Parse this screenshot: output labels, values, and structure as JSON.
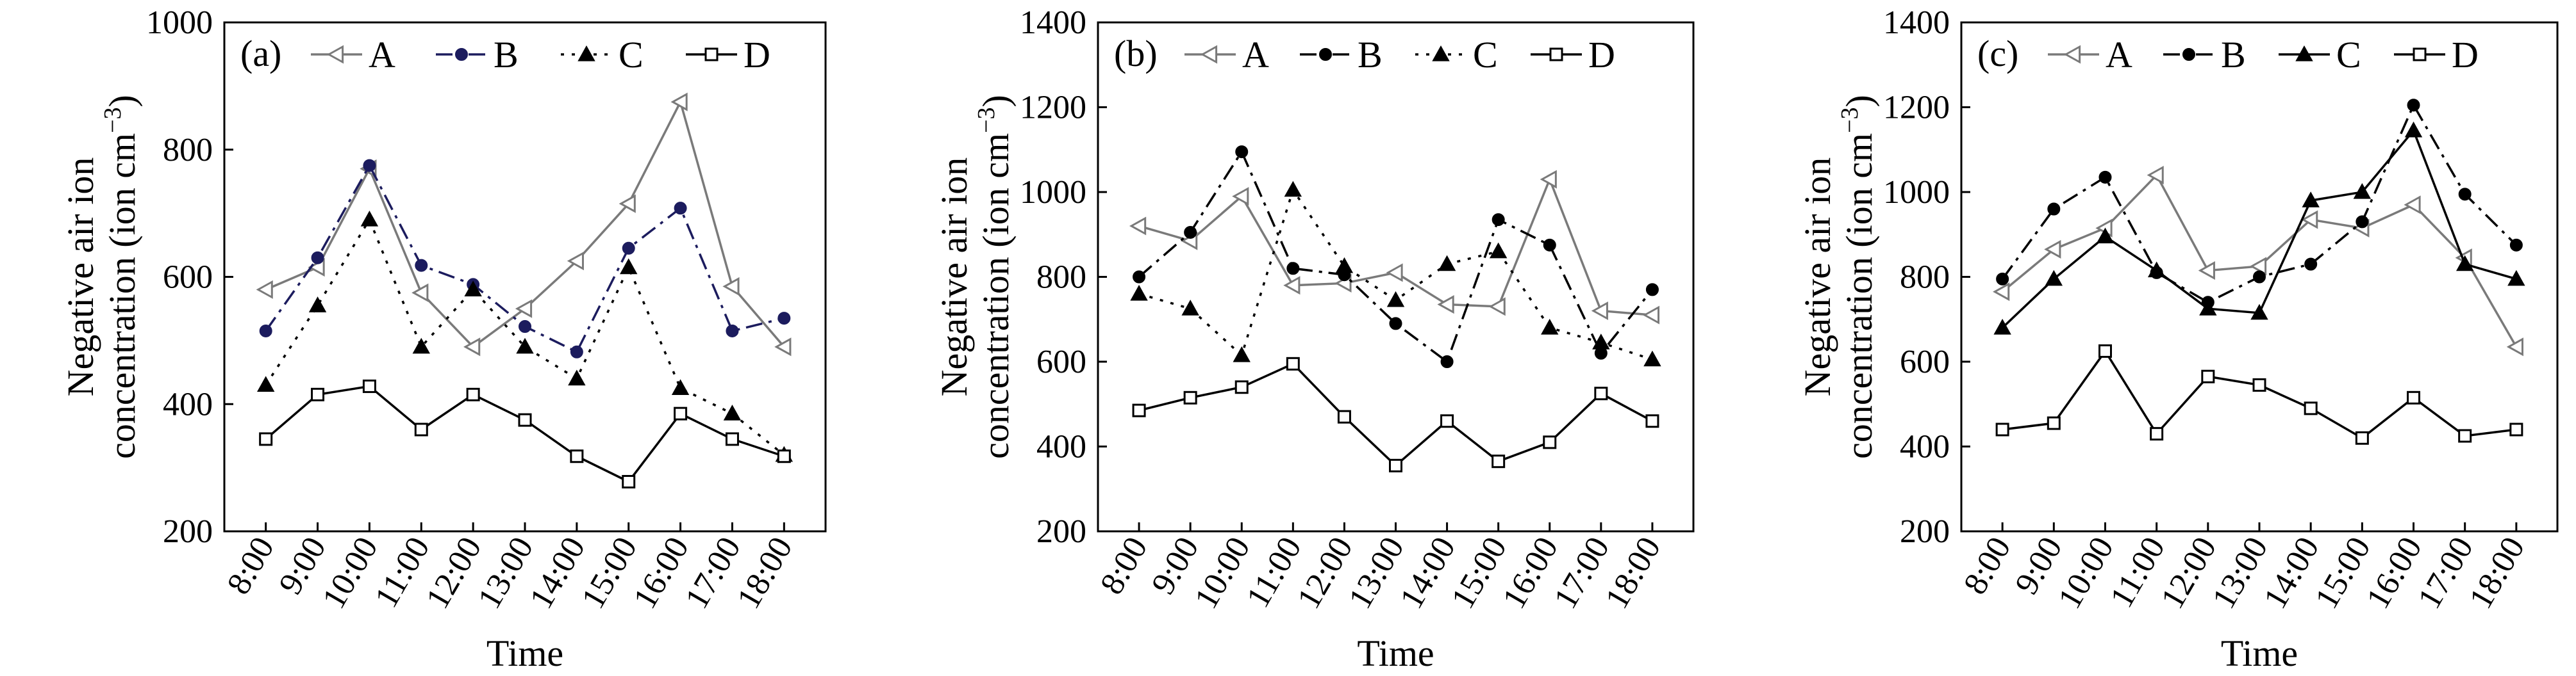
{
  "chart_data": [
    {
      "type": "line",
      "panel_label": "(a)",
      "categories": [
        "8:00",
        "9:00",
        "10:00",
        "11:00",
        "12:00",
        "13:00",
        "14:00",
        "15:00",
        "16:00",
        "17:00",
        "18:00"
      ],
      "xlabel": "Time",
      "ylabel": [
        "Negative air ion",
        "concentration (ion cm",
        "−3",
        ")"
      ],
      "ylim": [
        200,
        1000
      ],
      "yticks": [
        200,
        400,
        600,
        800,
        1000
      ],
      "legend_position": "top",
      "series": [
        {
          "name": "A",
          "color": "#7a7a7a",
          "marker": "triangle-left-open",
          "dash": "solid",
          "values": [
            580,
            615,
            770,
            575,
            490,
            550,
            625,
            715,
            875,
            585,
            490
          ]
        },
        {
          "name": "B",
          "color": "#1c1c5e",
          "marker": "circle-filled",
          "dash": "dashdot",
          "values": [
            515,
            630,
            775,
            618,
            588,
            522,
            482,
            645,
            708,
            515,
            535
          ]
        },
        {
          "name": "C",
          "color": "#000000",
          "marker": "triangle-up-filled",
          "dash": "dotted",
          "values": [
            430,
            555,
            690,
            490,
            580,
            490,
            440,
            615,
            425,
            385,
            320
          ]
        },
        {
          "name": "D",
          "color": "#000000",
          "marker": "square-open",
          "dash": "solid",
          "values": [
            345,
            415,
            428,
            360,
            415,
            375,
            318,
            278,
            385,
            345,
            318
          ]
        }
      ]
    },
    {
      "type": "line",
      "panel_label": "(b)",
      "categories": [
        "8:00",
        "9:00",
        "10:00",
        "11:00",
        "12:00",
        "13:00",
        "14:00",
        "15:00",
        "16:00",
        "17:00",
        "18:00"
      ],
      "xlabel": "Time",
      "ylabel": [
        "Negative air ion",
        "concentration (ion cm",
        "−3",
        ")"
      ],
      "ylim": [
        200,
        1400
      ],
      "yticks": [
        200,
        400,
        600,
        800,
        1000,
        1200,
        1400
      ],
      "legend_position": "top",
      "series": [
        {
          "name": "A",
          "color": "#7a7a7a",
          "marker": "triangle-left-open",
          "dash": "solid",
          "values": [
            920,
            885,
            990,
            780,
            785,
            810,
            735,
            730,
            1030,
            720,
            710
          ]
        },
        {
          "name": "B",
          "color": "#000000",
          "marker": "circle-filled",
          "dash": "dashdot",
          "values": [
            800,
            905,
            1095,
            820,
            805,
            690,
            600,
            935,
            875,
            620,
            770
          ]
        },
        {
          "name": "C",
          "color": "#000000",
          "marker": "triangle-up-filled",
          "dash": "dotted",
          "values": [
            760,
            725,
            615,
            1005,
            825,
            745,
            830,
            860,
            680,
            645,
            605
          ]
        },
        {
          "name": "D",
          "color": "#000000",
          "marker": "square-open",
          "dash": "solid",
          "values": [
            485,
            515,
            540,
            595,
            470,
            355,
            460,
            365,
            410,
            525,
            460
          ]
        }
      ]
    },
    {
      "type": "line",
      "panel_label": "(c)",
      "categories": [
        "8:00",
        "9:00",
        "10:00",
        "11:00",
        "12:00",
        "13:00",
        "14:00",
        "15:00",
        "16:00",
        "17:00",
        "18:00"
      ],
      "xlabel": "Time",
      "ylabel": [
        "Negative air ion",
        "concentration (ion cm",
        "−3",
        ")"
      ],
      "ylim": [
        200,
        1400
      ],
      "yticks": [
        200,
        400,
        600,
        800,
        1000,
        1200,
        1400
      ],
      "legend_position": "top",
      "series": [
        {
          "name": "A",
          "color": "#7a7a7a",
          "marker": "triangle-left-open",
          "dash": "solid",
          "values": [
            765,
            865,
            915,
            1040,
            815,
            825,
            935,
            915,
            970,
            845,
            635
          ]
        },
        {
          "name": "B",
          "color": "#000000",
          "marker": "circle-filled",
          "dash": "dashdot",
          "values": [
            795,
            960,
            1035,
            810,
            740,
            800,
            830,
            930,
            1205,
            995,
            875
          ]
        },
        {
          "name": "C",
          "color": "#000000",
          "marker": "triangle-up-filled",
          "dash": "solid",
          "values": [
            680,
            795,
            895,
            815,
            725,
            715,
            980,
            1000,
            1145,
            830,
            795
          ]
        },
        {
          "name": "D",
          "color": "#000000",
          "marker": "square-open",
          "dash": "solid",
          "values": [
            440,
            455,
            625,
            430,
            565,
            545,
            490,
            420,
            515,
            425,
            440
          ]
        }
      ]
    }
  ]
}
